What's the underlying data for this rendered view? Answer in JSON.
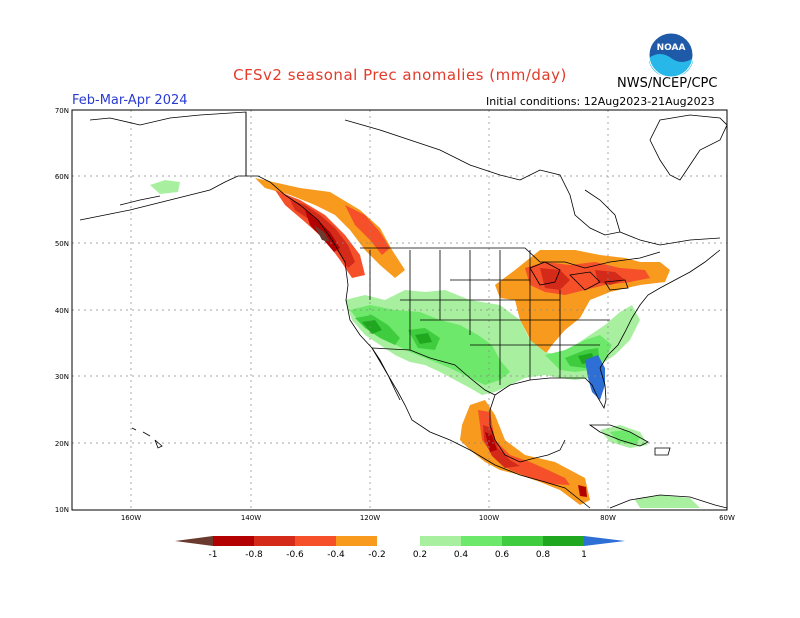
{
  "header": {
    "title": "CFSv2 seasonal Prec anomalies (mm/day)",
    "season": "Feb-Mar-Apr 2024",
    "initial_conditions": "Initial conditions: 12Aug2023-21Aug2023",
    "agency": "NWS/NCEP/CPC",
    "logo_text": "NOAA"
  },
  "axes": {
    "lat_labels": [
      "70N",
      "60N",
      "50N",
      "40N",
      "30N",
      "20N",
      "10N"
    ],
    "lon_labels": [
      "160W",
      "140W",
      "120W",
      "100W",
      "80W",
      "60W"
    ]
  },
  "colorbar": {
    "labels": [
      "-1",
      "-0.8",
      "-0.6",
      "-0.4",
      "-0.2",
      "0.2",
      "0.4",
      "0.6",
      "0.8",
      "1"
    ],
    "colors": {
      "lt_m1": "#6b3a2e",
      "m1_m08": "#b30000",
      "m08_m06": "#d42a1a",
      "m06_m04": "#f5502a",
      "m04_m02": "#f79a1e",
      "neutral": "#ffffff",
      "p02_p04": "#a8f0a0",
      "p04_p06": "#6ee86a",
      "p06_p08": "#3fcc3f",
      "p08_p1": "#1fa81f",
      "gt_p1": "#2e6fd6"
    }
  },
  "colors": {
    "title": "#e23b2a",
    "season": "#2a3bd4",
    "grid": "#888888",
    "coast": "#000000"
  }
}
